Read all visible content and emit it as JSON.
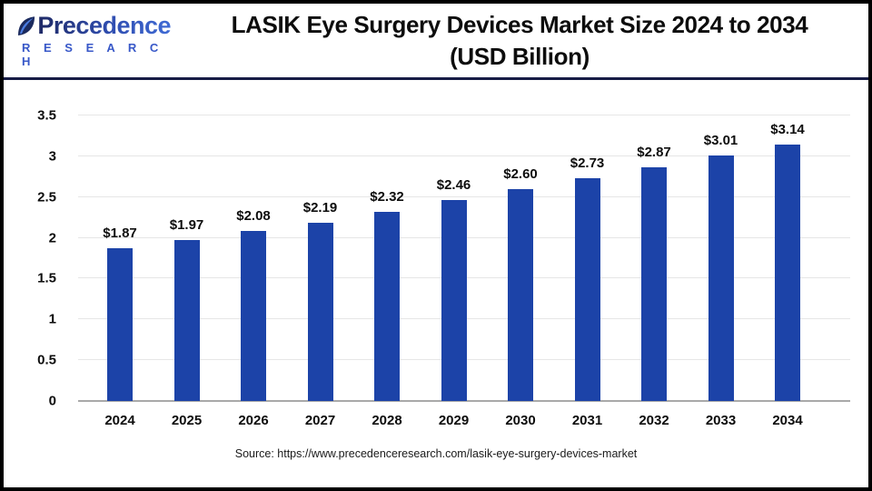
{
  "header": {
    "logo": {
      "brand_line1": "Precedence",
      "brand_line2": "R E S E A R C H"
    },
    "title_line1": "LASIK Eye Surgery Devices Market Size 2024 to 2034",
    "title_line2": "(USD Billion)"
  },
  "chart_data": {
    "type": "bar",
    "title": "LASIK Eye Surgery Devices Market Size 2024 to 2034 (USD Billion)",
    "categories": [
      "2024",
      "2025",
      "2026",
      "2027",
      "2028",
      "2029",
      "2030",
      "2031",
      "2032",
      "2033",
      "2034"
    ],
    "values": [
      1.87,
      1.97,
      2.08,
      2.19,
      2.32,
      2.46,
      2.6,
      2.73,
      2.87,
      3.01,
      3.14
    ],
    "value_labels": [
      "$1.87",
      "$1.97",
      "$2.08",
      "$2.19",
      "$2.32",
      "$2.46",
      "$2.60",
      "$2.73",
      "$2.87",
      "$3.01",
      "$3.14"
    ],
    "xlabel": "",
    "ylabel": "",
    "ylim": [
      0,
      3.5
    ],
    "yticks": [
      0,
      0.5,
      1,
      1.5,
      2,
      2.5,
      3,
      3.5
    ],
    "ytick_labels": [
      "0",
      "0.5",
      "1",
      "1.5",
      "2",
      "2.5",
      "3",
      "3.5"
    ],
    "grid": true,
    "legend": "none",
    "bar_color": "#1C43A8",
    "grid_color": "#E6E6E6",
    "axis_color": "#A9A9A9"
  },
  "footer": {
    "source": "Source: https://www.precedenceresearch.com/lasik-eye-surgery-devices-market"
  },
  "colors": {
    "frame_border": "#000000",
    "header_divider": "#171C45",
    "logo_dark": "#1F2A66",
    "logo_light": "#3F6AD4",
    "logo_sub": "#3858C8",
    "title_text": "#0d0d0d"
  }
}
